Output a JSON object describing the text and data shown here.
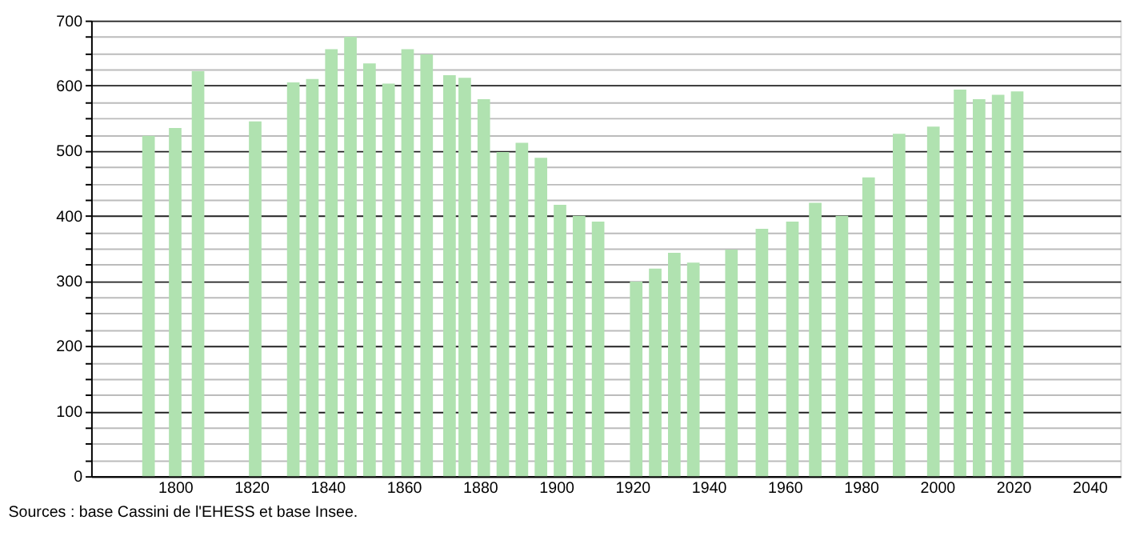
{
  "chart_data": {
    "type": "bar",
    "x": [
      1793,
      1800,
      1806,
      1821,
      1831,
      1836,
      1841,
      1846,
      1851,
      1856,
      1861,
      1866,
      1872,
      1876,
      1881,
      1886,
      1891,
      1896,
      1901,
      1906,
      1911,
      1921,
      1926,
      1931,
      1936,
      1946,
      1954,
      1962,
      1968,
      1975,
      1982,
      1990,
      1999,
      2006,
      2011,
      2016,
      2021
    ],
    "values": [
      523,
      535,
      622,
      545,
      605,
      610,
      656,
      675,
      634,
      603,
      656,
      648,
      616,
      612,
      579,
      498,
      512,
      489,
      417,
      400,
      391,
      299,
      319,
      343,
      328,
      348,
      380,
      391,
      420,
      400,
      459,
      526,
      537,
      594,
      579,
      586,
      591
    ],
    "color": "#b0e2b0",
    "xlim": [
      1780,
      2046
    ],
    "xticks": [
      1800,
      1820,
      1840,
      1860,
      1880,
      1900,
      1920,
      1940,
      1960,
      1980,
      2000,
      2020,
      2040
    ],
    "ylim": [
      0,
      700
    ],
    "yticks": [
      0,
      {
        "value": 25,
        "label": null
      },
      {
        "value": 50,
        "label": null
      },
      {
        "value": 75,
        "label": null
      },
      100,
      {
        "value": 125,
        "label": null
      },
      {
        "value": 150,
        "label": null
      },
      {
        "value": 175,
        "label": null
      },
      200,
      {
        "value": 225,
        "label": null
      },
      {
        "value": 250,
        "label": null
      },
      {
        "value": 275,
        "label": null
      },
      300,
      {
        "value": 325,
        "label": null
      },
      {
        "value": 350,
        "label": null
      },
      {
        "value": 375,
        "label": null
      },
      400,
      {
        "value": 425,
        "label": null
      },
      {
        "value": 450,
        "label": null
      },
      {
        "value": 475,
        "label": null
      },
      500,
      {
        "value": 525,
        "label": null
      },
      {
        "value": 550,
        "label": null
      },
      {
        "value": 575,
        "label": null
      },
      600,
      {
        "value": 625,
        "label": null
      },
      {
        "value": 650,
        "label": null
      },
      {
        "value": 675,
        "label": null
      },
      700
    ],
    "grid": "y",
    "annotations": [
      "Sources : base Cassini de l'EHESS et base Insee."
    ]
  }
}
